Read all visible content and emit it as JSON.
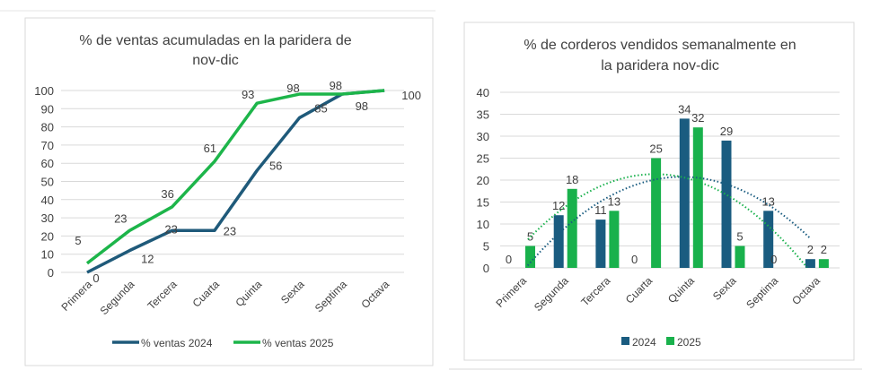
{
  "chart_data": [
    {
      "type": "line",
      "title": "% de ventas acumuladas en la paridera de nov-dic",
      "title_lines": [
        "% de ventas acumuladas en la paridera de",
        "nov-dic"
      ],
      "categories": [
        "Primera",
        "Segunda",
        "Tercera",
        "Cuarta",
        "Quinta",
        "Sexta",
        "Septima",
        "Octava"
      ],
      "ylim": [
        0,
        100
      ],
      "yticks": [
        0,
        10,
        20,
        30,
        40,
        50,
        60,
        70,
        80,
        90,
        100
      ],
      "grid": true,
      "legend": "bottom",
      "series": [
        {
          "name": "% ventas 2024",
          "color": "#1f5a7a",
          "values": [
            0,
            12,
            23,
            23,
            56,
            85,
            98,
            100
          ]
        },
        {
          "name": "% ventas 2025",
          "color": "#1db54a",
          "values": [
            5,
            23,
            36,
            61,
            93,
            98,
            98,
            100
          ]
        }
      ]
    },
    {
      "type": "bar",
      "title": "% de corderos vendidos semanalmente en la paridera nov-dic",
      "title_lines": [
        "% de corderos vendidos semanalmente en",
        "la paridera nov-dic"
      ],
      "categories": [
        "Primera",
        "Segunda",
        "Tercera",
        "Cuarta",
        "Quinta",
        "Sexta",
        "Septima",
        "Octava"
      ],
      "ylim": [
        0,
        40
      ],
      "yticks": [
        0,
        5,
        10,
        15,
        20,
        25,
        30,
        35,
        40
      ],
      "grid": true,
      "legend": "bottom",
      "trendline": "polynomial order 2, dotted",
      "series": [
        {
          "name": "2024",
          "color": "#1a5c80",
          "values": [
            0,
            12,
            11,
            0,
            34,
            29,
            13,
            2
          ]
        },
        {
          "name": "2025",
          "color": "#19b14c",
          "values": [
            5,
            18,
            13,
            25,
            32,
            5,
            0,
            2
          ]
        }
      ]
    }
  ]
}
